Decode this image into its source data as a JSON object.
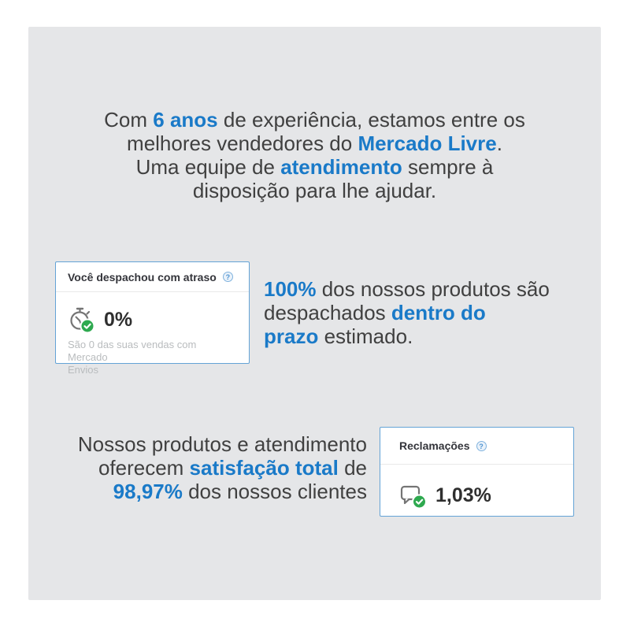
{
  "colors": {
    "accent_blue": "#1a7ac8",
    "card_border": "#64a3d6",
    "green": "#2ea94f",
    "panel_bg": "#e5e6e8",
    "text_dark": "#404040",
    "muted": "#b9bcbe"
  },
  "intro": {
    "lines": [
      [
        {
          "t": "Com "
        },
        {
          "t": "6 anos",
          "hl": true
        },
        {
          "t": " de experiência, estamos entre os"
        }
      ],
      [
        {
          "t": "melhores vendedores do "
        },
        {
          "t": "Mercado Livre",
          "hl": true
        },
        {
          "t": "."
        }
      ],
      [
        {
          "t": "Uma equipe de "
        },
        {
          "t": "atendimento",
          "hl": true
        },
        {
          "t": " sempre à"
        }
      ],
      [
        {
          "t": "disposição para lhe ajudar."
        }
      ]
    ]
  },
  "shipping_card": {
    "title": "Você despachou com atraso",
    "help_icon": "question-circle-icon",
    "metric_icon": "stopwatch-check-icon",
    "value": "0%",
    "subtitle_lines": [
      "São 0 das suas vendas com Mercado",
      "Envios"
    ]
  },
  "shipping_text": {
    "lines": [
      [
        {
          "t": "100%",
          "hl": true
        },
        {
          "t": " dos nossos produtos são"
        }
      ],
      [
        {
          "t": "despachados "
        },
        {
          "t": "dentro do",
          "hl": true
        }
      ],
      [
        {
          "t": "prazo",
          "hl": true
        },
        {
          "t": " estimado."
        }
      ]
    ]
  },
  "satisfaction_text": {
    "lines": [
      [
        {
          "t": "Nossos produtos e atendimento"
        }
      ],
      [
        {
          "t": "oferecem "
        },
        {
          "t": "satisfação total",
          "hl": true
        },
        {
          "t": " de"
        }
      ],
      [
        {
          "t": "98,97%",
          "hl": true
        },
        {
          "t": " dos nossos clientes"
        }
      ]
    ]
  },
  "claims_card": {
    "title": "Reclamações",
    "help_icon": "question-circle-icon",
    "metric_icon": "chat-bubble-check-icon",
    "value": "1,03%"
  }
}
